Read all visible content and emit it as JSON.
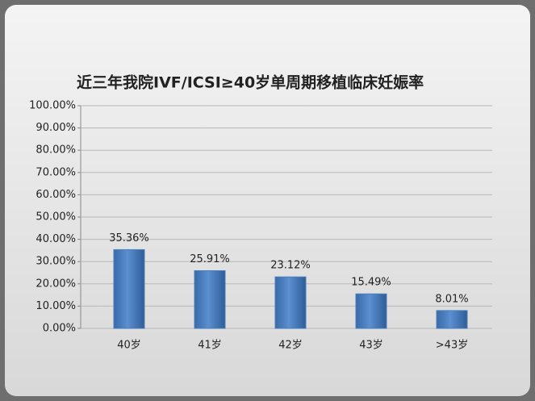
{
  "chart_data": {
    "type": "bar",
    "title": "近三年我院IVF/ICSI≥40岁单周期移植临床妊娠率",
    "categories": [
      "40岁",
      "41岁",
      "42岁",
      "43岁",
      ">43岁"
    ],
    "values": [
      35.36,
      25.91,
      23.12,
      15.49,
      8.01
    ],
    "value_labels": [
      "35.36%",
      "25.91%",
      "23.12%",
      "15.49%",
      "8.01%"
    ],
    "color": "#4a7ebb",
    "ylim": [
      0,
      100
    ],
    "yticks": [
      {
        "value": 0,
        "label": "0.00%"
      },
      {
        "value": 10,
        "label": "10.00%"
      },
      {
        "value": 20,
        "label": "20.00%"
      },
      {
        "value": 30,
        "label": "30.00%"
      },
      {
        "value": 40,
        "label": "40.00%"
      },
      {
        "value": 50,
        "label": "50.00%"
      },
      {
        "value": 60,
        "label": "60.00%"
      },
      {
        "value": 70,
        "label": "70.00%"
      },
      {
        "value": 80,
        "label": "80.00%"
      },
      {
        "value": 90,
        "label": "90.00%"
      },
      {
        "value": 100,
        "label": "100.00%"
      }
    ],
    "grid": true
  }
}
